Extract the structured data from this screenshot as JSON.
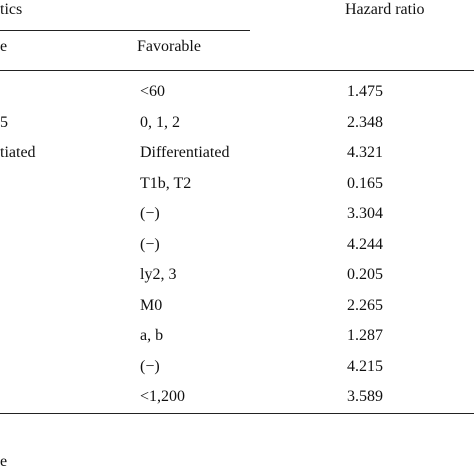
{
  "table": {
    "header": {
      "group": "tics",
      "hazard_ratio": "Hazard ratio",
      "sub_left": "e",
      "favorable": "Favorable"
    },
    "rows": [
      {
        "favorable": "<60",
        "hazard_ratio": "1.475"
      },
      {
        "left": "5",
        "favorable": "0, 1, 2",
        "hazard_ratio": "2.348"
      },
      {
        "left": "tiated",
        "favorable": "Differentiated",
        "hazard_ratio": "4.321"
      },
      {
        "favorable": "T1b, T2",
        "hazard_ratio": "0.165"
      },
      {
        "favorable": "(−)",
        "hazard_ratio": "3.304"
      },
      {
        "favorable": "(−)",
        "hazard_ratio": "4.244"
      },
      {
        "favorable": "ly2, 3",
        "hazard_ratio": "0.205"
      },
      {
        "favorable": "M0",
        "hazard_ratio": "2.265"
      },
      {
        "favorable": "a, b",
        "hazard_ratio": "1.287"
      },
      {
        "favorable": "(−)",
        "hazard_ratio": "4.215"
      },
      {
        "favorable": "<1,200",
        "hazard_ratio": "3.589"
      }
    ],
    "footnote": "e"
  }
}
